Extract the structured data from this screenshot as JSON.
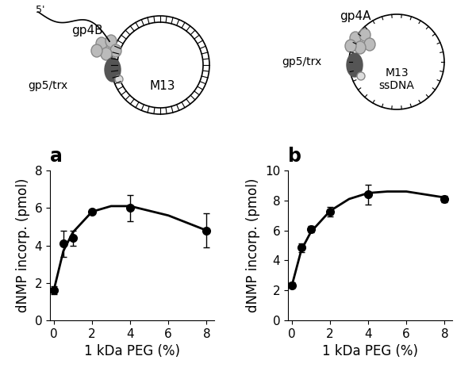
{
  "chart_data": [
    {
      "type": "line",
      "title": "a",
      "x_label": "1 kDa PEG (%)",
      "y_label": "dNMP incorp. (pmol)",
      "xlim": [
        -0.2,
        8.4
      ],
      "xticks": [
        0,
        2,
        4,
        6,
        8
      ],
      "ylim": [
        0,
        8
      ],
      "yticks": [
        0,
        2,
        4,
        6,
        8
      ],
      "series": [
        {
          "type": "scatter",
          "color": "#000000",
          "marker": "circle",
          "x": [
            0,
            0.5,
            1,
            2,
            4,
            8
          ],
          "values": [
            1.6,
            4.1,
            4.4,
            5.8,
            6.0,
            4.8
          ],
          "error": [
            0.2,
            0.7,
            0.4,
            0.1,
            0.7,
            0.9
          ]
        },
        {
          "type": "line",
          "color": "#000000",
          "line_style": "solid",
          "x": [
            0,
            0.5,
            1,
            2,
            3,
            4,
            6,
            8
          ],
          "values": [
            1.6,
            3.7,
            4.7,
            5.8,
            6.1,
            6.1,
            5.6,
            4.8
          ]
        }
      ]
    },
    {
      "type": "line",
      "title": "b",
      "x_label": "1 kDa PEG (%)",
      "y_label": "dNMP incorp. (pmol)",
      "xlim": [
        -0.2,
        8.4
      ],
      "xticks": [
        0,
        2,
        4,
        6,
        8
      ],
      "ylim": [
        0,
        10
      ],
      "yticks": [
        0,
        2,
        4,
        6,
        8,
        10
      ],
      "series": [
        {
          "type": "scatter",
          "color": "#000000",
          "marker": "circle",
          "x": [
            0,
            0.5,
            1,
            2,
            4,
            8
          ],
          "values": [
            2.35,
            4.85,
            6.1,
            7.25,
            8.4,
            8.1
          ],
          "error": [
            0.2,
            0.3,
            0.2,
            0.3,
            0.65,
            0.2
          ]
        },
        {
          "type": "line",
          "color": "#000000",
          "line_style": "solid",
          "x": [
            0,
            0.5,
            1,
            2,
            3,
            4,
            5,
            6,
            8
          ],
          "values": [
            2.3,
            4.7,
            5.9,
            7.3,
            8.1,
            8.5,
            8.6,
            8.6,
            8.2
          ]
        }
      ]
    }
  ],
  "schematics": [
    {
      "end_label": "5'",
      "helicase": "gp4B",
      "polymerase": "gp5/trx",
      "template": "M13"
    },
    {
      "helicase": "gp4A",
      "polymerase": "gp5/trx",
      "template": "M13\nssDNA"
    }
  ]
}
